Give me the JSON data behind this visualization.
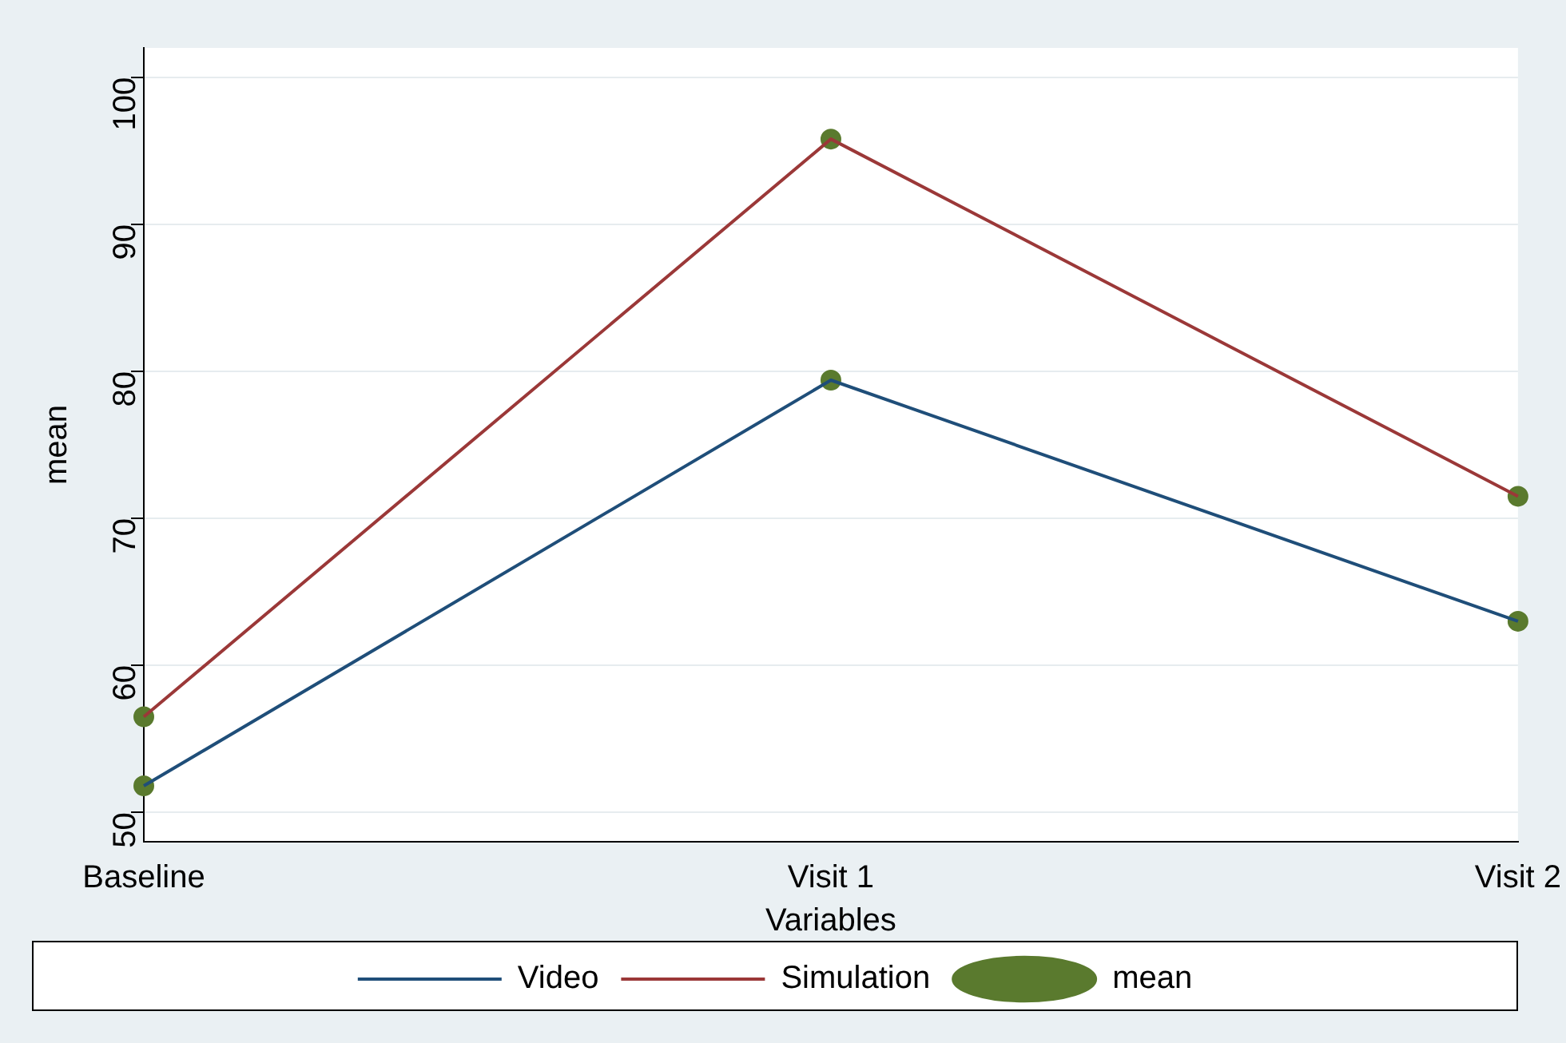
{
  "chart_data": {
    "type": "line",
    "xlabel": "Variables",
    "ylabel": "mean",
    "categories": [
      "Baseline",
      "Visit 1",
      "Visit 2"
    ],
    "series": [
      {
        "name": "Video",
        "color": "#1f4e79",
        "values": [
          51.8,
          79.4,
          63.0
        ]
      },
      {
        "name": "Simulation",
        "color": "#9b3838",
        "values": [
          56.5,
          95.8,
          71.5
        ]
      },
      {
        "name": "mean",
        "type": "scatter",
        "marker": "circle",
        "color": "#5a7a2e",
        "x": [
          "Baseline",
          "Visit 1",
          "Visit 2",
          "Baseline",
          "Visit 1",
          "Visit 2"
        ],
        "values": [
          51.8,
          79.4,
          63.0,
          56.5,
          95.8,
          71.5
        ]
      }
    ],
    "ylim": [
      48,
      102
    ],
    "yticks": [
      50,
      60,
      70,
      80,
      90,
      100
    ],
    "grid": "y",
    "legend": "bottom",
    "line_style": "solid"
  }
}
